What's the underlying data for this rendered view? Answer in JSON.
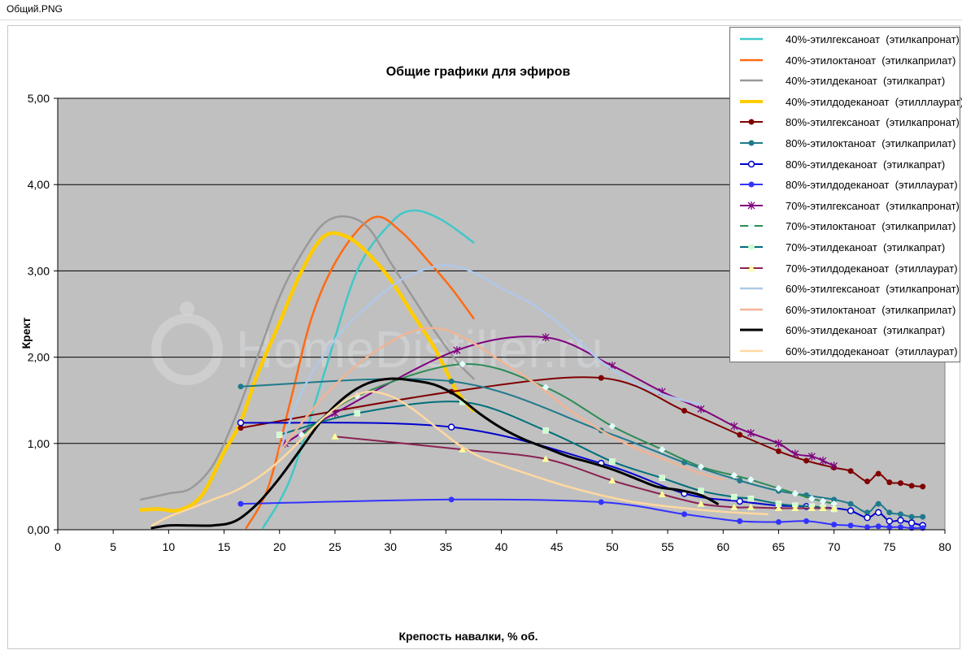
{
  "window_title": "Общий.PNG",
  "chart_data": {
    "type": "line",
    "title": "Общие графики для эфиров",
    "xlabel": "Крепость навалки, % об.",
    "ylabel": "Крект",
    "xlim": [
      0,
      80
    ],
    "ylim": [
      0,
      5
    ],
    "x_ticks": [
      "0",
      "5",
      "10",
      "15",
      "20",
      "25",
      "30",
      "35",
      "40",
      "45",
      "50",
      "55",
      "60",
      "65",
      "70",
      "75",
      "80"
    ],
    "y_ticks": [
      "0,00",
      "1,00",
      "2,00",
      "3,00",
      "4,00",
      "5,00"
    ],
    "grid": "horizontal",
    "plot_background": "#c0c0c0",
    "legend_position": "top-right",
    "watermark": "HomeDistiller.ru",
    "series": [
      {
        "name": "40%-этилгексаноат  (этилкапронат)",
        "color": "#40c8c8",
        "width": 2.5,
        "marker": "none",
        "x": [
          18.5,
          21,
          24,
          27,
          30,
          32,
          34.5,
          37.5
        ],
        "y": [
          0.02,
          0.6,
          1.8,
          3.0,
          3.55,
          3.7,
          3.6,
          3.33
        ]
      },
      {
        "name": "40%-этилоктаноат  (этилкаприлат)",
        "color": "#ff6a13",
        "width": 2.5,
        "marker": "none",
        "x": [
          17,
          19,
          21,
          23,
          25.5,
          28.5,
          31,
          33.5,
          35.5,
          37.5
        ],
        "y": [
          0.02,
          0.5,
          1.5,
          2.5,
          3.2,
          3.62,
          3.45,
          3.1,
          2.8,
          2.45
        ]
      },
      {
        "name": "40%-этилдеканоат  (этилкапрат)",
        "color": "#999999",
        "width": 2.5,
        "marker": "none",
        "x": [
          7.5,
          10,
          12,
          14,
          16,
          18,
          20,
          22,
          24,
          26,
          28,
          30,
          32,
          34,
          36,
          37.5
        ],
        "y": [
          0.35,
          0.42,
          0.48,
          0.75,
          1.3,
          2.0,
          2.7,
          3.2,
          3.55,
          3.63,
          3.5,
          3.1,
          2.7,
          2.3,
          1.95,
          1.75
        ]
      },
      {
        "name": "40%-этилдодеканоат  (этилллаурат)",
        "color": "#ffcc00",
        "width": 4.5,
        "marker": "none",
        "x": [
          7.5,
          9,
          11,
          13,
          15,
          16.5,
          18,
          20,
          22,
          24,
          26,
          28,
          30,
          32,
          34,
          36,
          37.5
        ],
        "y": [
          0.23,
          0.24,
          0.23,
          0.4,
          0.9,
          1.25,
          1.8,
          2.4,
          3.0,
          3.4,
          3.4,
          3.2,
          2.9,
          2.5,
          2.1,
          1.6,
          1.38
        ]
      },
      {
        "name": "80%-этилгексаноат  (этилкапронат)",
        "color": "#800000",
        "width": 2,
        "marker": "dot",
        "x": [
          16.5,
          35.5,
          49,
          56.5,
          61.5,
          65,
          67.5,
          70,
          71.5,
          73,
          74,
          75,
          76,
          77,
          78
        ],
        "y": [
          1.18,
          1.6,
          1.76,
          1.38,
          1.1,
          0.91,
          0.8,
          0.72,
          0.68,
          0.56,
          0.65,
          0.55,
          0.54,
          0.51,
          0.5
        ]
      },
      {
        "name": "80%-этилоктаноат  (этилкаприлат)",
        "color": "#1f7a8c",
        "width": 2,
        "marker": "dot",
        "x": [
          16.5,
          35.5,
          49,
          56.5,
          61.5,
          65,
          67.5,
          70,
          71.5,
          73,
          74,
          75,
          76,
          77,
          78
        ],
        "y": [
          1.66,
          1.72,
          1.15,
          0.78,
          0.57,
          0.45,
          0.4,
          0.35,
          0.3,
          0.2,
          0.3,
          0.2,
          0.18,
          0.15,
          0.15
        ]
      },
      {
        "name": "80%-этилдеканоат  (этилкапрат)",
        "color": "#0000cc",
        "width": 2,
        "marker": "ring",
        "x": [
          16.5,
          35.5,
          49,
          56.5,
          61.5,
          65,
          67.5,
          70,
          71.5,
          73,
          74,
          75,
          76,
          77,
          78
        ],
        "y": [
          1.24,
          1.19,
          0.77,
          0.42,
          0.33,
          0.28,
          0.27,
          0.25,
          0.22,
          0.14,
          0.2,
          0.1,
          0.11,
          0.08,
          0.05
        ]
      },
      {
        "name": "80%-этилдодеканоат  (этиллаурат)",
        "color": "#3333ff",
        "width": 2,
        "marker": "dot",
        "x": [
          16.5,
          35.5,
          49,
          56.5,
          61.5,
          65,
          67.5,
          70,
          71.5,
          73,
          74,
          75,
          76,
          77,
          78
        ],
        "y": [
          0.3,
          0.35,
          0.32,
          0.18,
          0.1,
          0.09,
          0.1,
          0.06,
          0.05,
          0.03,
          0.04,
          0.03,
          0.03,
          0.02,
          0.02
        ]
      },
      {
        "name": "70%-этилгексаноат  (этилкапронат)",
        "color": "#800080",
        "width": 2,
        "marker": "star",
        "x": [
          20.5,
          25,
          36,
          44,
          50,
          54.5,
          58,
          61,
          62.5,
          65,
          66.5,
          68,
          69,
          70
        ],
        "y": [
          1.0,
          1.35,
          2.08,
          2.23,
          1.9,
          1.6,
          1.4,
          1.2,
          1.12,
          1.0,
          0.88,
          0.85,
          0.8,
          0.74
        ]
      },
      {
        "name": "70%-этилоктаноат  (этилкаприлат)",
        "color": "#2e8b57",
        "width": 2,
        "marker": "diamond",
        "x": [
          22,
          27,
          36.5,
          44,
          50,
          54.5,
          58,
          61,
          62.5,
          65,
          66.5,
          68,
          69,
          70
        ],
        "y": [
          1.1,
          1.55,
          1.92,
          1.65,
          1.2,
          0.93,
          0.73,
          0.63,
          0.58,
          0.48,
          0.42,
          0.36,
          0.33,
          0.3
        ]
      },
      {
        "name": "70%-этилдеканоат  (этилкапрат)",
        "color": "#006f7a",
        "width": 2,
        "marker": "square",
        "x": [
          20,
          27,
          36.5,
          44,
          50,
          54.5,
          58,
          61,
          62.5,
          65,
          66.5,
          68,
          69,
          70
        ],
        "y": [
          1.1,
          1.35,
          1.48,
          1.15,
          0.79,
          0.6,
          0.45,
          0.38,
          0.36,
          0.3,
          0.28,
          0.27,
          0.26,
          0.24
        ]
      },
      {
        "name": "70%-этилдодеканоат  (этиллаурат)",
        "color": "#8b2252",
        "width": 2,
        "marker": "triangle",
        "x": [
          25,
          36.5,
          44,
          50,
          54.5,
          58,
          61,
          62.5,
          65,
          66.5,
          68,
          69,
          70
        ],
        "y": [
          1.08,
          0.93,
          0.82,
          0.57,
          0.41,
          0.3,
          0.26,
          0.26,
          0.25,
          0.25,
          0.25,
          0.25,
          0.25
        ]
      },
      {
        "name": "60%-этилгексаноат  (этилкапронат)",
        "color": "#b0c8e8",
        "width": 2.5,
        "marker": "none",
        "x": [
          20,
          22,
          25,
          28,
          31,
          34,
          36,
          38,
          40,
          43,
          46,
          49,
          52,
          55,
          58
        ],
        "y": [
          0.9,
          1.6,
          2.2,
          2.6,
          2.9,
          3.05,
          3.05,
          2.95,
          2.8,
          2.6,
          2.3,
          1.95,
          1.7,
          1.55,
          1.45
        ]
      },
      {
        "name": "60%-этилоктаноат  (этилкаприлат)",
        "color": "#f0b496",
        "width": 2.5,
        "marker": "none",
        "x": [
          20,
          23,
          26,
          29,
          32,
          34.5,
          37,
          40,
          43,
          46,
          49,
          52,
          55,
          58,
          60
        ],
        "y": [
          0.9,
          1.4,
          1.8,
          2.1,
          2.3,
          2.33,
          2.2,
          1.95,
          1.7,
          1.4,
          1.15,
          0.95,
          0.8,
          0.65,
          0.58
        ]
      },
      {
        "name": "60%-этилдеканоат  (этилкапрат)",
        "color": "#000000",
        "width": 3,
        "marker": "none",
        "x": [
          8.5,
          10,
          12,
          14,
          16,
          18,
          20,
          22,
          24,
          26,
          28,
          30,
          32,
          34,
          36,
          38,
          40,
          42,
          44,
          46,
          48,
          50,
          52,
          54,
          56,
          58,
          59.5
        ],
        "y": [
          0.02,
          0.05,
          0.05,
          0.05,
          0.1,
          0.3,
          0.6,
          0.95,
          1.3,
          1.55,
          1.7,
          1.75,
          1.73,
          1.68,
          1.55,
          1.35,
          1.18,
          1.05,
          0.95,
          0.85,
          0.78,
          0.7,
          0.6,
          0.5,
          0.46,
          0.4,
          0.3
        ]
      },
      {
        "name": "60%-этилдодеканоат  (этиллаурат)",
        "color": "#ffd8a0",
        "width": 2.5,
        "marker": "none",
        "x": [
          8.5,
          10,
          12,
          14,
          16,
          18,
          20,
          22,
          24,
          26,
          28,
          30,
          32,
          34,
          36,
          38,
          40,
          43,
          46,
          49,
          52,
          55,
          58,
          61,
          64
        ],
        "y": [
          0.05,
          0.15,
          0.25,
          0.35,
          0.45,
          0.6,
          0.8,
          1.05,
          1.3,
          1.5,
          1.6,
          1.55,
          1.4,
          1.2,
          1.0,
          0.85,
          0.75,
          0.62,
          0.5,
          0.4,
          0.32,
          0.27,
          0.23,
          0.2,
          0.18
        ]
      }
    ]
  }
}
